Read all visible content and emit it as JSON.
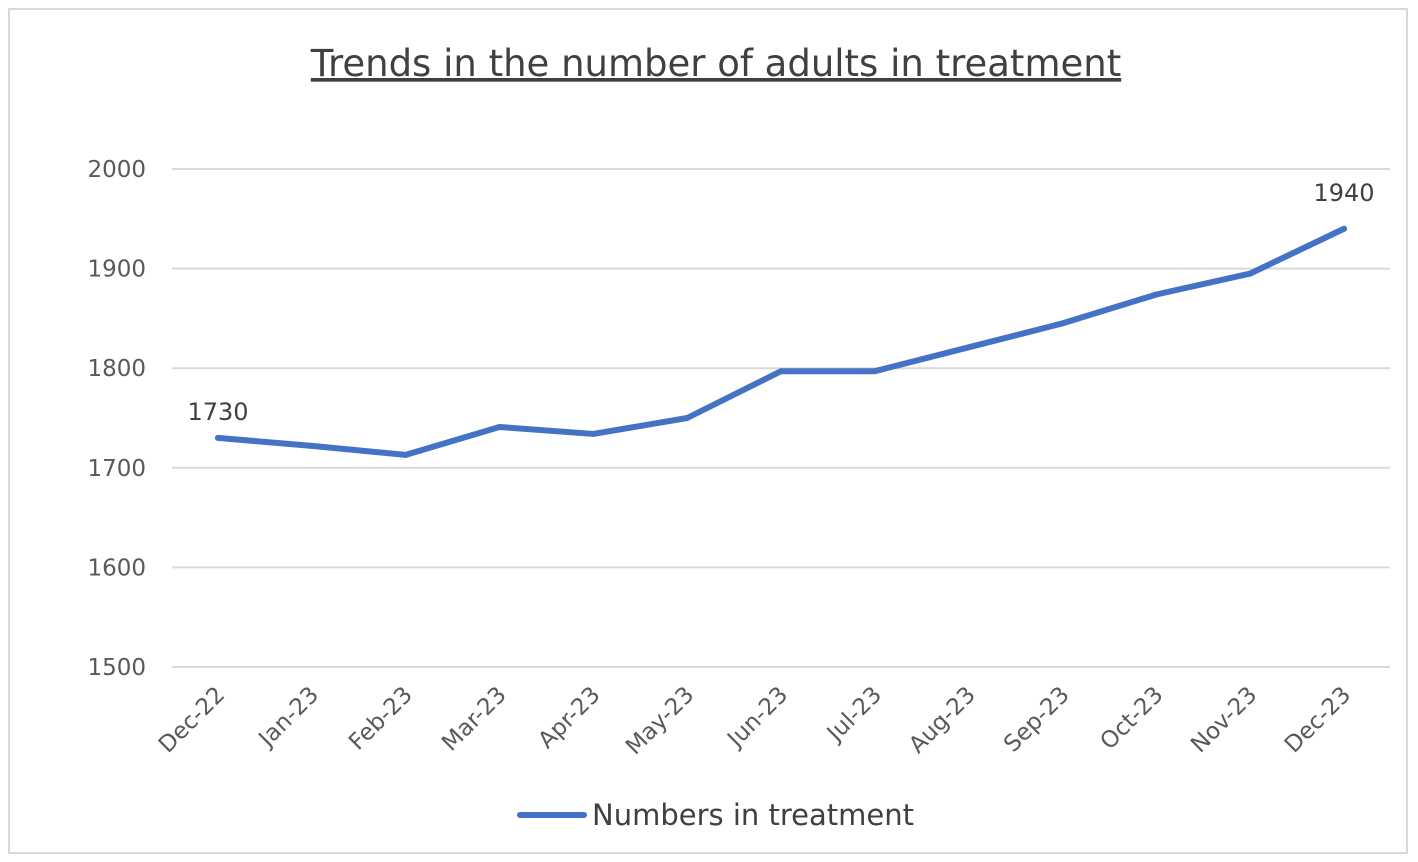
{
  "chart_data": {
    "type": "line",
    "title": "Trends in the number of adults in treatment",
    "xlabel": "",
    "ylabel": "",
    "categories": [
      "Dec-22",
      "Jan-23",
      "Feb-23",
      "Mar-23",
      "Apr-23",
      "May-23",
      "Jun-23",
      "Jul-23",
      "Aug-23",
      "Sep-23",
      "Oct-23",
      "Nov-23",
      "Dec-23"
    ],
    "series": [
      {
        "name": "Numbers in treatment",
        "values": [
          1730,
          1722,
          1713,
          1741,
          1734,
          1750,
          1797,
          1797,
          1821,
          1845,
          1874,
          1895,
          1940
        ],
        "color": "#4472C4"
      }
    ],
    "ylim": [
      1500,
      2000
    ],
    "yticks": [
      "1500",
      "1600",
      "1700",
      "1800",
      "1900",
      "2000"
    ],
    "data_labels": [
      "1730",
      "1940"
    ],
    "grid": true,
    "legend_position": "bottom"
  }
}
